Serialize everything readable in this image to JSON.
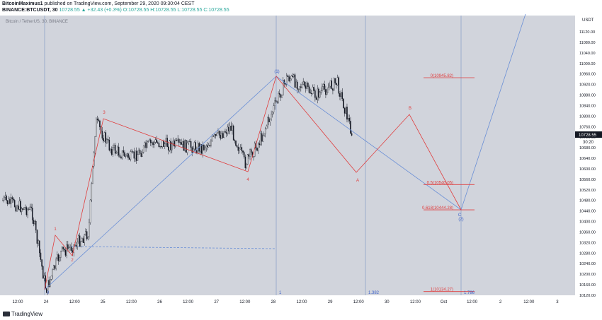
{
  "header": {
    "author": "BitcoinMaximus1",
    "published_text": "published on TradingView.com, September 29, 2020 09:30:04 CEST",
    "symbol_line": "BINANCE:BTCUSDT, 30",
    "change": "10728.55 ▲ +32.43 (+0.3%)",
    "ohlc": "O:10728.55 H:10728.55 L:10728.55 C:10728.55"
  },
  "legend": {
    "symbol_title": "Bitcoin / TetherUS, 30, BINANCE"
  },
  "price_axis": {
    "unit": "USDT",
    "current_price": "10728.55",
    "countdown": "30:20",
    "ticks": [
      "11120.00",
      "11080.00",
      "11040.00",
      "11000.00",
      "10960.00",
      "10920.00",
      "10880.00",
      "10840.00",
      "10800.00",
      "10760.00",
      "10720.00",
      "10680.00",
      "10640.00",
      "10600.00",
      "10560.00",
      "10520.00",
      "10480.00",
      "10440.00",
      "10400.00",
      "10360.00",
      "10320.00",
      "10280.00",
      "10240.00",
      "10200.00",
      "10160.00",
      "10120.00"
    ]
  },
  "time_axis": {
    "ticks": [
      "12:00",
      "24",
      "12:00",
      "25",
      "12:00",
      "26",
      "12:00",
      "27",
      "12:00",
      "28",
      "12:00",
      "29",
      "12:00",
      "30",
      "12:00",
      "Oct",
      "12:00",
      "2",
      "12:00",
      "3"
    ]
  },
  "fib_levels": [
    {
      "label": "0(10945.82)",
      "price": 10945.82
    },
    {
      "label": "0.5(10540.05)",
      "price": 10540.05
    },
    {
      "label": "0.618(10444.28)",
      "price": 10444.28
    },
    {
      "label": "1(10134.27)",
      "price": 10134.27
    }
  ],
  "wave_labels": [
    "1",
    "2",
    "3",
    "4",
    "(1)",
    "A",
    "B",
    "C",
    "(2)"
  ],
  "time_ratio_labels": [
    "0",
    "1",
    "1.382",
    "1.786"
  ],
  "chart_data": {
    "type": "candlestick",
    "title": "Bitcoin / TetherUS, 30, BINANCE",
    "symbol": "BINANCE:BTCUSDT",
    "interval": "30",
    "last_price": 10728.55,
    "ylim": [
      10110,
      11150
    ],
    "x_ticks": [
      "24",
      "25",
      "26",
      "27",
      "28",
      "29",
      "30",
      "Oct",
      "2",
      "3"
    ],
    "price_path": [
      {
        "t": "Sep 23 06:00",
        "price": 10480
      },
      {
        "t": "Sep 23 18:00",
        "price": 10440
      },
      {
        "t": "Sep 24 00:00",
        "price": 10140
      },
      {
        "t": "Sep 24 06:00",
        "price": 10280
      },
      {
        "t": "Sep 24 12:00",
        "price": 10310
      },
      {
        "t": "Sep 24 18:00",
        "price": 10360
      },
      {
        "t": "Sep 24 21:00",
        "price": 10780
      },
      {
        "t": "Sep 25 03:00",
        "price": 10680
      },
      {
        "t": "Sep 25 12:00",
        "price": 10640
      },
      {
        "t": "Sep 25 21:00",
        "price": 10700
      },
      {
        "t": "Sep 26 06:00",
        "price": 10690
      },
      {
        "t": "Sep 26 18:00",
        "price": 10680
      },
      {
        "t": "Sep 27 06:00",
        "price": 10760
      },
      {
        "t": "Sep 27 12:00",
        "price": 10620
      },
      {
        "t": "Sep 27 18:00",
        "price": 10700
      },
      {
        "t": "Sep 28 06:00",
        "price": 10950
      },
      {
        "t": "Sep 28 18:00",
        "price": 10880
      },
      {
        "t": "Sep 29 03:00",
        "price": 10930
      },
      {
        "t": "Sep 29 09:30",
        "price": 10728.55
      }
    ],
    "projection": [
      {
        "wave": "A",
        "price": 10590
      },
      {
        "wave": "B",
        "price": 10830
      },
      {
        "wave": "C",
        "price": 10444
      }
    ],
    "fibonacci": [
      {
        "level": 0,
        "price": 10945.82
      },
      {
        "level": 0.5,
        "price": 10540.05
      },
      {
        "level": 0.618,
        "price": 10444.28
      },
      {
        "level": 1,
        "price": 10134.27
      }
    ]
  }
}
